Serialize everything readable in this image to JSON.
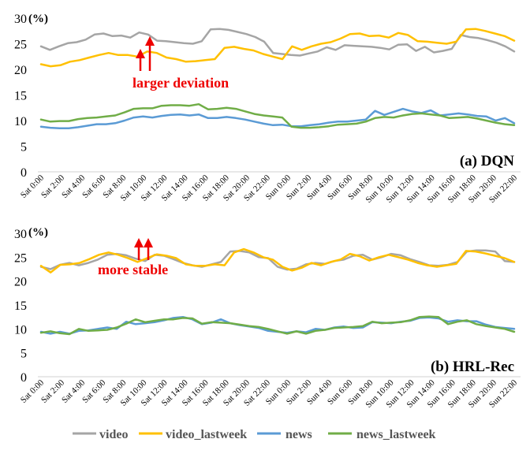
{
  "legend": [
    "video",
    "video_lastweek",
    "news",
    "news_lastweek"
  ],
  "colors": {
    "video": "#a5a5a5",
    "video_lastweek": "#ffc000",
    "news": "#5b9bd5",
    "news_lastweek": "#70ad47",
    "annotation": "#ee0000"
  },
  "chart_data": [
    {
      "type": "line",
      "title": "(a) DQN",
      "ylabel": "(%)",
      "ylim": [
        0,
        30
      ],
      "yticks": [
        0,
        5,
        10,
        15,
        20,
        25,
        30
      ],
      "x_tick_labels": [
        "Sat  0:00",
        "Sat  2:00",
        "Sat  4:00",
        "Sat  6:00",
        "Sat  8:00",
        "Sat 10:00",
        "Sat 12:00",
        "Sat 14:00",
        "Sat 16:00",
        "Sat 18:00",
        "Sat 20:00",
        "Sat 22:00",
        "Sun  0:00",
        "Sun  2:00",
        "Sun  4:00",
        "Sun  6:00",
        "Sun  8:00",
        "Sun 10:00",
        "Sun 12:00",
        "Sun 14:00",
        "Sun 16:00",
        "Sun 18:00",
        "Sun 20:00",
        "Sun 22:00"
      ],
      "annotation": "larger deviation",
      "series": [
        {
          "name": "video",
          "values": [
            24.5,
            23.8,
            24.5,
            25.1,
            25.3,
            25.8,
            26.8,
            27.0,
            26.5,
            26.6,
            26.2,
            27.2,
            26.8,
            25.6,
            25.5,
            25.3,
            25.1,
            25.0,
            25.5,
            27.8,
            27.9,
            27.7,
            27.3,
            26.9,
            26.3,
            25.4,
            23.2,
            23.0,
            22.8,
            22.7,
            23.1,
            23.5,
            24.3,
            23.8,
            24.7,
            24.6,
            24.5,
            24.4,
            24.2,
            23.9,
            24.8,
            24.9,
            23.6,
            24.4,
            23.3,
            23.6,
            24.0,
            26.7,
            26.3,
            26.1,
            25.7,
            25.2,
            24.5,
            23.5
          ]
        },
        {
          "name": "video_lastweek",
          "values": [
            21.0,
            20.6,
            20.8,
            21.5,
            21.8,
            22.3,
            22.8,
            23.2,
            22.8,
            22.8,
            22.5,
            23.5,
            23.2,
            22.3,
            22.0,
            21.5,
            21.6,
            21.8,
            22.0,
            24.2,
            24.4,
            24.0,
            23.7,
            23.0,
            22.5,
            22.0,
            24.5,
            23.8,
            24.5,
            25.0,
            25.3,
            26.0,
            26.9,
            27.0,
            26.5,
            26.6,
            26.2,
            27.1,
            26.7,
            25.5,
            25.4,
            25.2,
            25.0,
            25.4,
            27.8,
            27.9,
            27.5,
            27.0,
            26.5,
            25.6
          ]
        },
        {
          "name": "news",
          "values": [
            8.8,
            8.6,
            8.5,
            8.5,
            8.7,
            9.0,
            9.3,
            9.3,
            9.5,
            10.0,
            10.6,
            10.8,
            10.6,
            10.9,
            11.1,
            11.2,
            11.0,
            11.2,
            10.5,
            10.5,
            10.7,
            10.5,
            10.2,
            9.8,
            9.4,
            9.1,
            9.2,
            8.9,
            8.9,
            9.1,
            9.3,
            9.6,
            9.8,
            9.8,
            10.0,
            10.2,
            11.9,
            11.1,
            11.7,
            12.3,
            11.8,
            11.5,
            12.0,
            11.0,
            11.2,
            11.4,
            11.2,
            10.9,
            10.8,
            10.0,
            10.5,
            9.5
          ]
        },
        {
          "name": "news_lastweek",
          "values": [
            10.2,
            9.8,
            9.9,
            9.9,
            10.3,
            10.5,
            10.6,
            10.8,
            11.0,
            11.6,
            12.3,
            12.4,
            12.4,
            12.9,
            13.0,
            13.0,
            12.9,
            13.2,
            12.2,
            12.3,
            12.5,
            12.3,
            11.8,
            11.3,
            11.0,
            10.8,
            10.6,
            8.8,
            8.6,
            8.6,
            8.7,
            8.9,
            9.2,
            9.3,
            9.4,
            9.8,
            10.5,
            10.7,
            10.6,
            11.0,
            11.3,
            11.4,
            11.2,
            11.0,
            10.5,
            10.6,
            10.7,
            10.4,
            10.0,
            9.6,
            9.3,
            9.1
          ]
        }
      ]
    },
    {
      "type": "line",
      "title": "(b) HRL-Rec",
      "ylabel": "(%)",
      "ylim": [
        0,
        30
      ],
      "yticks": [
        0,
        5,
        10,
        15,
        20,
        25,
        30
      ],
      "x_tick_labels": [
        "Sat  0:00",
        "Sat  2:00",
        "Sat  4:00",
        "Sat  6:00",
        "Sat  8:00",
        "Sat 10:00",
        "Sat 12:00",
        "Sat 14:00",
        "Sat 16:00",
        "Sat 18:00",
        "Sat 20:00",
        "Sat 22:00",
        "Sun  0:00",
        "Sun  2:00",
        "Sun  4:00",
        "Sun  6:00",
        "Sun  8:00",
        "Sun 10:00",
        "Sun 12:00",
        "Sun 14:00",
        "Sun 16:00",
        "Sun 18:00",
        "Sun 20:00",
        "Sun 22:00"
      ],
      "annotation": "more stable",
      "series": [
        {
          "name": "video",
          "values": [
            23.0,
            22.5,
            23.4,
            23.8,
            23.3,
            23.8,
            24.5,
            25.5,
            25.7,
            25.4,
            24.7,
            24.2,
            25.5,
            25.3,
            24.6,
            23.8,
            23.3,
            23.0,
            23.5,
            24.0,
            26.2,
            26.3,
            26.0,
            25.0,
            24.8,
            23.0,
            22.4,
            22.6,
            23.5,
            23.8,
            23.6,
            24.2,
            24.5,
            25.3,
            25.5,
            24.5,
            25.0,
            25.7,
            25.4,
            24.6,
            24.0,
            23.3,
            23.2,
            23.4,
            24.0,
            26.2,
            26.4,
            26.4,
            26.2,
            24.2,
            24.0
          ]
        },
        {
          "name": "video_lastweek",
          "values": [
            23.2,
            21.8,
            23.4,
            23.5,
            23.8,
            24.6,
            25.5,
            26.0,
            25.5,
            24.8,
            24.0,
            24.8,
            25.6,
            25.3,
            24.8,
            23.5,
            23.2,
            23.2,
            23.5,
            23.3,
            26.0,
            26.7,
            26.0,
            25.0,
            24.5,
            23.0,
            22.2,
            22.8,
            23.8,
            23.3,
            24.0,
            24.5,
            25.7,
            25.2,
            24.3,
            25.0,
            25.5,
            25.0,
            24.5,
            23.8,
            23.3,
            23.0,
            23.3,
            23.6,
            26.3,
            26.2,
            25.8,
            25.3,
            24.8,
            24.0
          ]
        },
        {
          "name": "news",
          "values": [
            9.4,
            9.0,
            9.4,
            9.0,
            9.6,
            9.7,
            10.0,
            10.3,
            10.0,
            11.5,
            11.0,
            11.2,
            11.4,
            11.8,
            12.3,
            12.5,
            12.0,
            11.0,
            11.3,
            12.0,
            11.2,
            10.8,
            10.5,
            10.2,
            9.6,
            9.4,
            9.2,
            9.5,
            9.3,
            10.0,
            9.8,
            10.3,
            10.5,
            10.2,
            10.3,
            11.4,
            11.3,
            11.2,
            11.5,
            11.7,
            12.3,
            12.4,
            12.2,
            11.5,
            11.8,
            11.6,
            11.6,
            10.9,
            10.4,
            10.2,
            10.0
          ]
        },
        {
          "name": "news_lastweek",
          "values": [
            9.2,
            9.5,
            9.1,
            8.9,
            10.0,
            9.6,
            9.7,
            9.8,
            10.3,
            11.1,
            12.0,
            11.4,
            11.7,
            12.0,
            12.0,
            12.3,
            12.2,
            11.1,
            11.4,
            11.3,
            11.2,
            10.9,
            10.6,
            10.4,
            10.0,
            9.5,
            9.0,
            9.5,
            9.0,
            9.6,
            9.8,
            10.2,
            10.3,
            10.4,
            10.6,
            11.5,
            11.2,
            11.3,
            11.4,
            11.8,
            12.5,
            12.6,
            12.5,
            11.0,
            11.5,
            11.8,
            11.0,
            10.6,
            10.3,
            10.0,
            9.4
          ]
        }
      ]
    }
  ]
}
